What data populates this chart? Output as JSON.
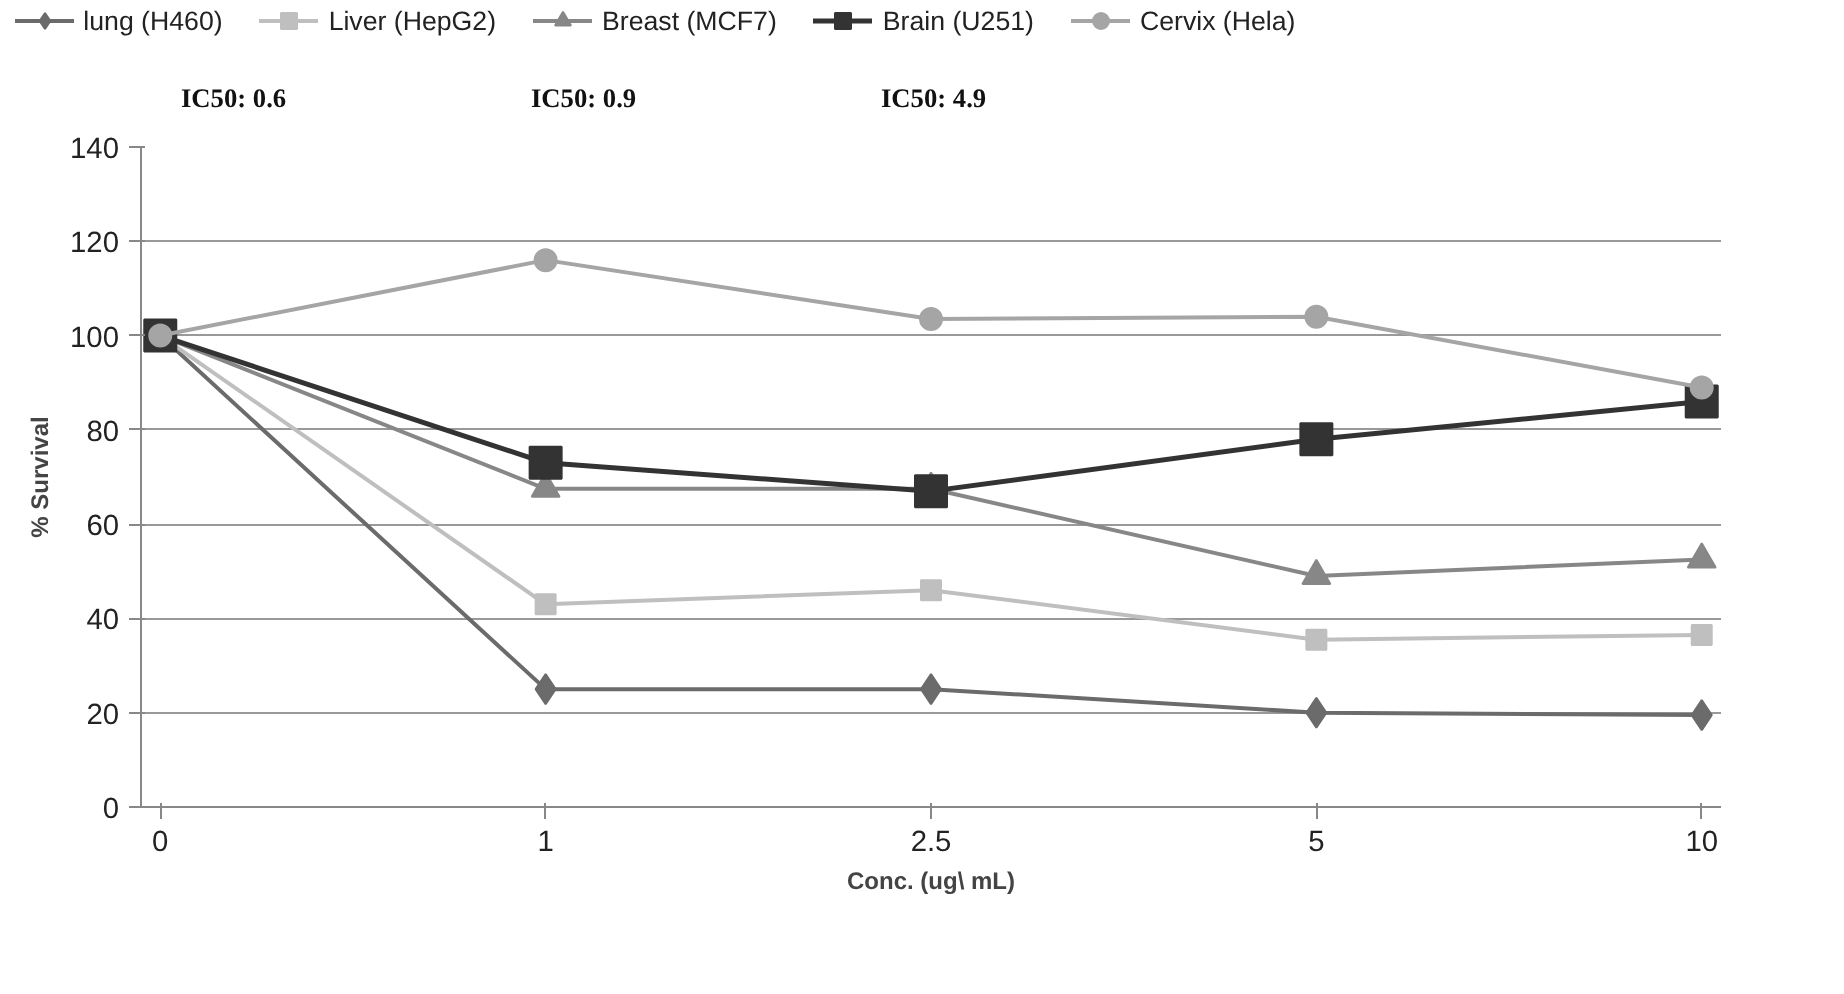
{
  "chart_data": {
    "type": "line",
    "xlabel": "Conc. (ug\\ mL)",
    "ylabel": "% Survival",
    "categories": [
      "0",
      "1",
      "2.5",
      "5",
      "10"
    ],
    "ylim": [
      0,
      140
    ],
    "yticks": [
      0,
      20,
      40,
      60,
      80,
      100,
      120,
      140
    ],
    "grid": "y",
    "legend": "top",
    "annotations": [
      "IC50: 0.6",
      "IC50: 0.9",
      "IC50: 4.9"
    ],
    "series": [
      {
        "name": "lung (H460)",
        "color": "#6b6b6b",
        "marker": "diamond",
        "values": [
          100,
          25,
          25,
          20,
          19.5
        ]
      },
      {
        "name": "Liver (HepG2)",
        "color": "#bfbfbf",
        "marker": "square",
        "values": [
          100,
          43,
          46,
          35.5,
          36.5
        ]
      },
      {
        "name": "Breast (MCF7)",
        "color": "#878787",
        "marker": "triangle",
        "values": [
          100,
          67.5,
          67.5,
          49,
          52.5
        ]
      },
      {
        "name": "Brain (U251)",
        "color": "#333333",
        "marker": "square",
        "values": [
          100,
          73,
          67,
          78,
          86
        ]
      },
      {
        "name": "Cervix (Hela)",
        "color": "#a5a5a5",
        "marker": "circle",
        "values": [
          100,
          116,
          103.5,
          104,
          89
        ]
      }
    ]
  }
}
